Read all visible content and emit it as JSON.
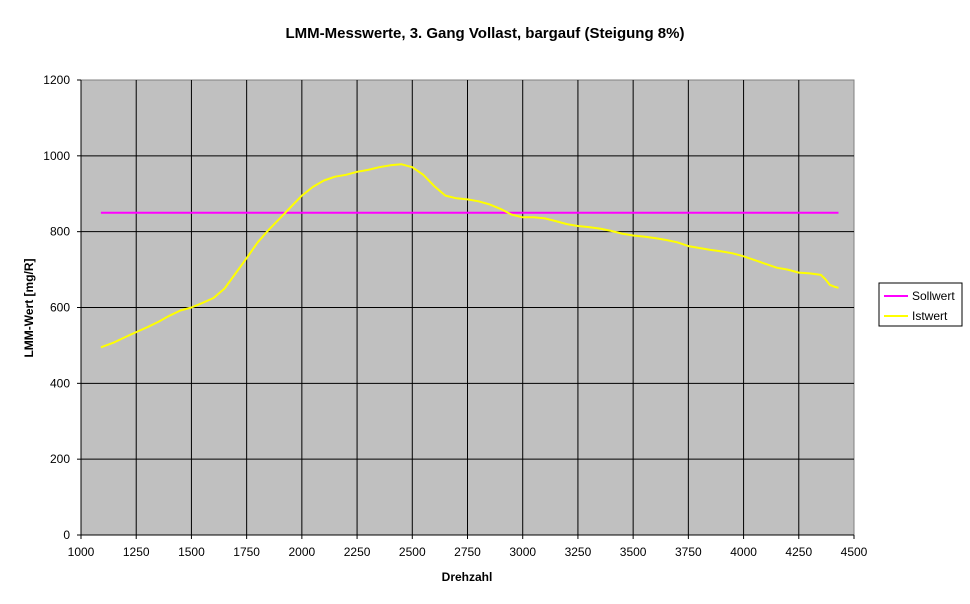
{
  "chart_data": {
    "type": "line",
    "title": "LMM-Messwerte, 3. Gang Vollast, bargauf (Steigung 8%)",
    "xlabel": "Drehzahl",
    "ylabel": "LMM-Wert [mg/R]",
    "xlim": [
      1000,
      4500
    ],
    "ylim": [
      0,
      1200
    ],
    "x_ticks": [
      1000,
      1250,
      1500,
      1750,
      2000,
      2250,
      2500,
      2750,
      3000,
      3250,
      3500,
      3750,
      4000,
      4250,
      4500
    ],
    "y_ticks": [
      0,
      200,
      400,
      600,
      800,
      1000,
      1200
    ],
    "grid": true,
    "plot_background": "#c0c0c0",
    "legend_position": "right",
    "series": [
      {
        "name": "Sollwert",
        "color": "#ff00ff",
        "x": [
          1090,
          4430
        ],
        "y": [
          850,
          850
        ]
      },
      {
        "name": "Istwert",
        "color": "#ffff00",
        "x": [
          1090,
          1150,
          1200,
          1250,
          1300,
          1350,
          1400,
          1450,
          1500,
          1550,
          1600,
          1650,
          1700,
          1750,
          1800,
          1850,
          1900,
          1950,
          2000,
          2050,
          2100,
          2150,
          2200,
          2250,
          2300,
          2350,
          2400,
          2450,
          2500,
          2550,
          2600,
          2650,
          2700,
          2750,
          2800,
          2850,
          2900,
          2950,
          3000,
          3050,
          3100,
          3150,
          3200,
          3250,
          3300,
          3350,
          3400,
          3450,
          3500,
          3550,
          3600,
          3650,
          3700,
          3750,
          3800,
          3850,
          3900,
          3950,
          4000,
          4050,
          4100,
          4150,
          4200,
          4250,
          4300,
          4350,
          4370,
          4390,
          4410,
          4430
        ],
        "y": [
          495,
          508,
          522,
          535,
          548,
          562,
          578,
          592,
          600,
          612,
          625,
          650,
          690,
          730,
          772,
          805,
          835,
          865,
          895,
          918,
          935,
          945,
          950,
          958,
          963,
          970,
          975,
          978,
          970,
          950,
          920,
          895,
          888,
          885,
          880,
          872,
          860,
          845,
          838,
          838,
          835,
          828,
          820,
          815,
          812,
          808,
          802,
          795,
          790,
          787,
          783,
          778,
          772,
          762,
          757,
          752,
          748,
          743,
          735,
          725,
          715,
          705,
          700,
          692,
          690,
          686,
          675,
          660,
          655,
          652
        ]
      }
    ]
  }
}
